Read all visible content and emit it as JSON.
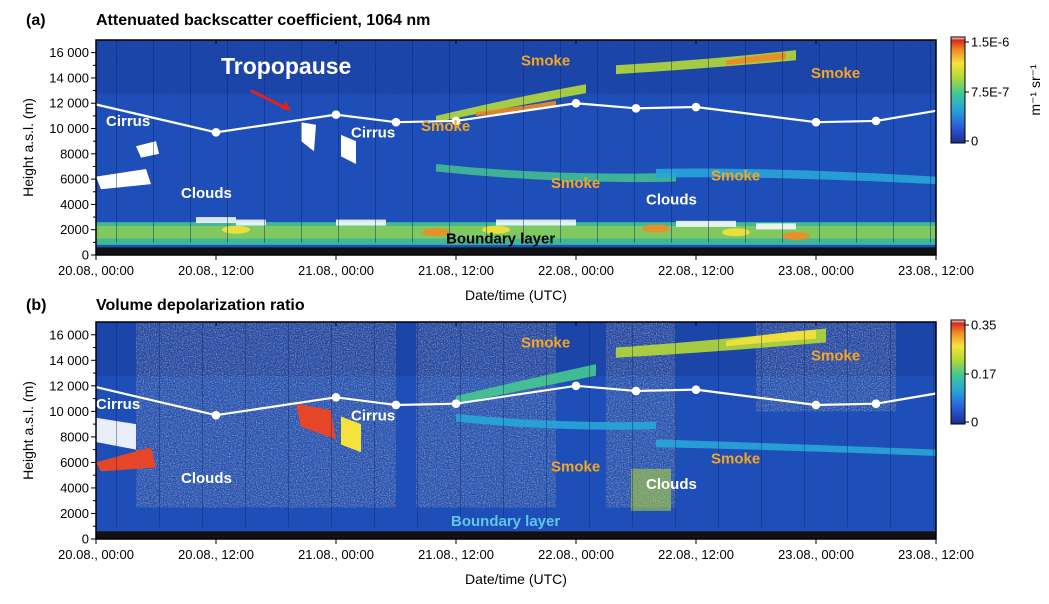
{
  "chart_data": [
    {
      "type": "heatmap",
      "panel_label": "(a)",
      "title": "Attenuated backscatter coefficient, 1064 nm",
      "xlabel": "Date/time (UTC)",
      "ylabel": "Height a.s.l. (m)",
      "xlim": [
        "20.08., 00:00",
        "23.08., 12:00"
      ],
      "ylim": [
        0,
        17000
      ],
      "x_ticks": [
        "20.08., 00:00",
        "20.08., 12:00",
        "21.08., 00:00",
        "21.08., 12:00",
        "22.08., 00:00",
        "22.08., 12:00",
        "23.08., 00:00",
        "23.08., 12:00"
      ],
      "y_ticks": [
        "0",
        "2000",
        "4000",
        "6000",
        "8000",
        "10 000",
        "12 000",
        "14 000",
        "16 000"
      ],
      "colorbar": {
        "ticks": [
          "1.5E-6",
          "7.5E-7",
          "0"
        ],
        "label": "m⁻¹ sr⁻¹",
        "range": [
          0,
          1.5e-06
        ]
      },
      "tropopause": {
        "x_hours": [
          0,
          12,
          24,
          30,
          36,
          48,
          54,
          60,
          72,
          78,
          84
        ],
        "y": [
          11900,
          9700,
          11100,
          10500,
          10600,
          12000,
          11600,
          11700,
          10500,
          10600,
          11400
        ]
      },
      "annotations": [
        {
          "text": "Tropopause",
          "color": "#ffffff"
        },
        {
          "text": "Cirrus",
          "color": "#ffffff"
        },
        {
          "text": "Cirrus",
          "color": "#ffffff"
        },
        {
          "text": "Clouds",
          "color": "#ffffff"
        },
        {
          "text": "Clouds",
          "color": "#ffffff"
        },
        {
          "text": "Smoke",
          "color": "#f5a623"
        },
        {
          "text": "Smoke",
          "color": "#f5a623"
        },
        {
          "text": "Smoke",
          "color": "#f5a623"
        },
        {
          "text": "Smoke",
          "color": "#f5a623"
        },
        {
          "text": "Smoke",
          "color": "#f5a623"
        },
        {
          "text": "Boundary layer",
          "color": "#000000"
        }
      ]
    },
    {
      "type": "heatmap",
      "panel_label": "(b)",
      "title": "Volume depolarization ratio",
      "xlabel": "Date/time (UTC)",
      "ylabel": "Height a.s.l. (m)",
      "xlim": [
        "20.08., 00:00",
        "23.08., 12:00"
      ],
      "ylim": [
        0,
        17000
      ],
      "x_ticks": [
        "20.08., 00:00",
        "20.08., 12:00",
        "21.08., 00:00",
        "21.08., 12:00",
        "22.08., 00:00",
        "22.08., 12:00",
        "23.08., 00:00",
        "23.08., 12:00"
      ],
      "y_ticks": [
        "0",
        "2000",
        "4000",
        "6000",
        "8000",
        "10 000",
        "12 000",
        "14 000",
        "16 000"
      ],
      "colorbar": {
        "ticks": [
          "0.35",
          "0.17",
          "0"
        ],
        "range": [
          0,
          0.35
        ]
      },
      "tropopause": {
        "x_hours": [
          0,
          12,
          24,
          30,
          36,
          48,
          54,
          60,
          72,
          78,
          84
        ],
        "y": [
          11900,
          9700,
          11100,
          10500,
          10600,
          12000,
          11600,
          11700,
          10500,
          10600,
          11400
        ]
      },
      "annotations": [
        {
          "text": "Cirrus",
          "color": "#ffffff"
        },
        {
          "text": "Cirrus",
          "color": "#ffffff"
        },
        {
          "text": "Clouds",
          "color": "#ffffff"
        },
        {
          "text": "Clouds",
          "color": "#ffffff"
        },
        {
          "text": "Smoke",
          "color": "#f5a623"
        },
        {
          "text": "Smoke",
          "color": "#f5a623"
        },
        {
          "text": "Smoke",
          "color": "#f5a623"
        },
        {
          "text": "Smoke",
          "color": "#f5a623"
        },
        {
          "text": "Boundary layer",
          "color": "#5fc8e8"
        }
      ]
    }
  ]
}
